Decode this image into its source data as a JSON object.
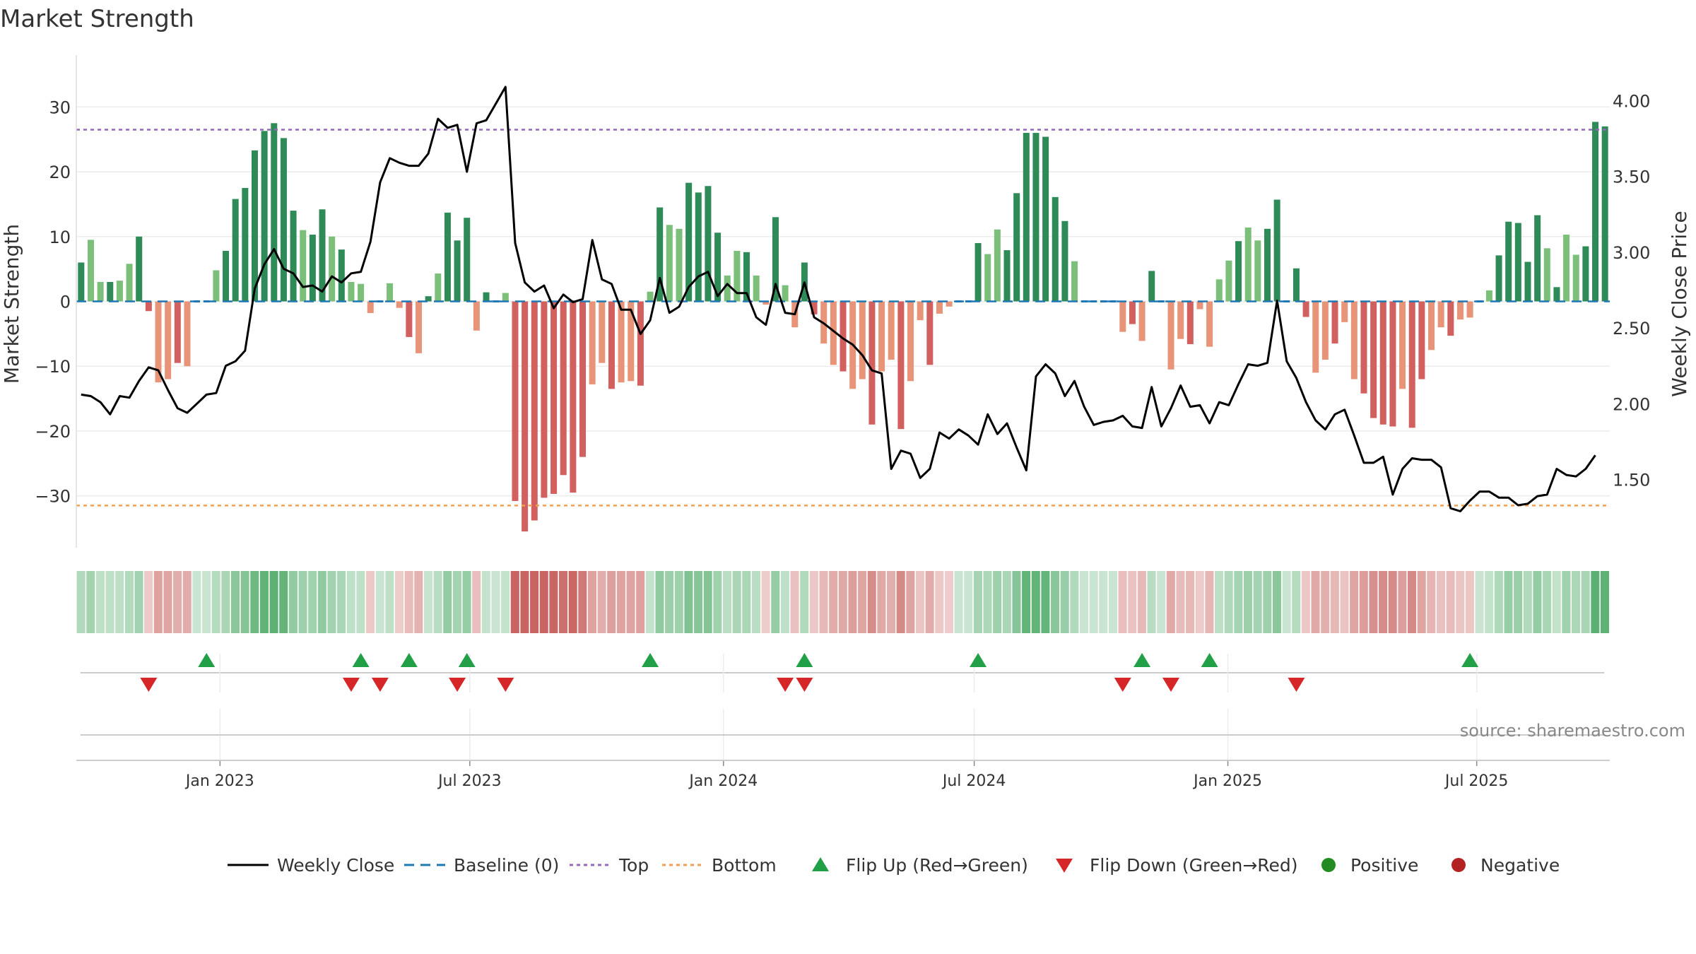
{
  "chart_data": {
    "type": "bar",
    "title": "Market Strength",
    "ylabel_left": "Market Strength",
    "ylabel_right": "Weekly Close Price",
    "ylim_left": [
      -38,
      38
    ],
    "ylim_right": [
      1.05,
      4.3
    ],
    "yticks_left": [
      30,
      20,
      10,
      0,
      -10,
      -20,
      -30
    ],
    "yticks_left_labels": [
      "30",
      "20",
      "10",
      "0",
      "−10",
      "−20",
      "−30"
    ],
    "yticks_right": [
      4.0,
      3.5,
      3.0,
      2.5,
      2.0,
      1.5
    ],
    "yticks_right_labels": [
      "4.00",
      "3.50",
      "3.00",
      "2.50",
      "2.00",
      "1.50"
    ],
    "x_start": "2022-09-26",
    "x_end": "2025-09-22",
    "xticks": [
      {
        "label": "Jan 2023",
        "week": 14.4
      },
      {
        "label": "Jul 2023",
        "week": 40.3
      },
      {
        "label": "Jan 2024",
        "week": 66.6
      },
      {
        "label": "Jul 2024",
        "week": 92.6
      },
      {
        "label": "Jan 2025",
        "week": 118.9
      },
      {
        "label": "Jul 2025",
        "week": 144.7
      }
    ],
    "top_line": 26.5,
    "bottom_line": -31.5,
    "strength": [
      6,
      9.5,
      3,
      3,
      3.2,
      5.8,
      10,
      -1.5,
      -12.5,
      -12,
      -9.5,
      -10,
      0,
      0,
      4.8,
      7.8,
      15.8,
      17.5,
      23.3,
      26.3,
      27.5,
      25.2,
      14,
      11,
      10.3,
      14.2,
      10,
      8,
      3,
      2.7,
      -1.8,
      0,
      2.8,
      -1,
      -5.5,
      -8,
      0.8,
      4.3,
      13.7,
      9.4,
      12.9,
      -4.5,
      1.4,
      0,
      1.3,
      -30.8,
      -35.5,
      -33.8,
      -30.3,
      -29.7,
      -26.8,
      -29.5,
      -24,
      -12.8,
      -9.5,
      -13.5,
      -12.5,
      -12.3,
      -13,
      1.5,
      14.5,
      11.8,
      11.2,
      18.3,
      16.8,
      17.8,
      10.6,
      4,
      7.8,
      7.6,
      4,
      -0.5,
      13,
      2.5,
      -4,
      6,
      -2,
      -6.5,
      -9.8,
      -10.8,
      -13.5,
      -12,
      -19,
      -10.8,
      -9,
      -19.7,
      -12.3,
      -2.9,
      -9.8,
      -1.9,
      -0.8,
      0,
      0,
      9,
      7.3,
      11.1,
      7.9,
      16.7,
      26,
      26,
      25.4,
      16.1,
      12.4,
      6.2,
      0,
      0,
      0,
      0,
      -4.7,
      -3.5,
      -6.1,
      4.7,
      0,
      -10.5,
      -5.8,
      -6.6,
      -1.2,
      -7,
      3.4,
      6.3,
      9.3,
      11.4,
      9.4,
      11.2,
      15.7,
      0,
      5.1,
      -2.4,
      -11,
      -9,
      -6.5,
      -3.2,
      -12,
      -14.2,
      -18,
      -19,
      -19.3,
      -13.5,
      -19.5,
      -12,
      -7.5,
      -4,
      -5.3,
      -2.8,
      -2.5,
      0,
      1.7,
      7.1,
      12.3,
      12.1,
      6.1,
      13.3,
      8.2,
      2.2,
      10.3,
      7.2,
      8.5,
      27.7,
      27
    ],
    "weekly_close": [
      2.06,
      2.05,
      2.01,
      1.93,
      2.05,
      2.04,
      2.15,
      2.24,
      2.22,
      2.09,
      1.97,
      1.94,
      2.0,
      2.06,
      2.07,
      2.25,
      2.28,
      2.35,
      2.76,
      2.92,
      3.02,
      2.89,
      2.86,
      2.77,
      2.78,
      2.74,
      2.84,
      2.8,
      2.86,
      2.87,
      3.07,
      3.46,
      3.62,
      3.59,
      3.57,
      3.57,
      3.65,
      3.88,
      3.82,
      3.84,
      3.53,
      3.85,
      3.87,
      3.98,
      4.09,
      3.06,
      2.8,
      2.74,
      2.78,
      2.63,
      2.72,
      2.67,
      2.69,
      3.08,
      2.82,
      2.79,
      2.62,
      2.62,
      2.46,
      2.55,
      2.83,
      2.6,
      2.64,
      2.77,
      2.84,
      2.87,
      2.71,
      2.79,
      2.73,
      2.73,
      2.57,
      2.52,
      2.79,
      2.6,
      2.59,
      2.8,
      2.57,
      2.53,
      2.48,
      2.43,
      2.39,
      2.32,
      2.22,
      2.2,
      1.57,
      1.69,
      1.67,
      1.51,
      1.57,
      1.81,
      1.77,
      1.83,
      1.79,
      1.73,
      1.93,
      1.8,
      1.87,
      1.71,
      1.56,
      2.18,
      2.26,
      2.2,
      2.05,
      2.15,
      1.98,
      1.86,
      1.88,
      1.89,
      1.92,
      1.85,
      1.84,
      2.11,
      1.85,
      1.97,
      2.12,
      1.98,
      1.99,
      1.87,
      2.01,
      1.99,
      2.13,
      2.26,
      2.25,
      2.27,
      2.68,
      2.28,
      2.17,
      2.01,
      1.89,
      1.83,
      1.93,
      1.96,
      1.79,
      1.61,
      1.61,
      1.65,
      1.4,
      1.57,
      1.64,
      1.63,
      1.63,
      1.58,
      1.31,
      1.29,
      1.36,
      1.42,
      1.42,
      1.38,
      1.38,
      1.33,
      1.34,
      1.39,
      1.4,
      1.57,
      1.53,
      1.52,
      1.57,
      1.66
    ],
    "flip_up_weeks": [
      13,
      29,
      34,
      40,
      59,
      75,
      93,
      110,
      117,
      144
    ],
    "flip_down_weeks": [
      7,
      28,
      31,
      39,
      44,
      73,
      75,
      108,
      113,
      126
    ],
    "colors": {
      "pos_strong": "#2e8b57",
      "pos_weak": "#7bbf7a",
      "neg_strong": "#d1605e",
      "neg_weak": "#e89478",
      "baseline": "#1f77b4",
      "top": "#9467bd",
      "bottom": "#f0a050",
      "close": "#000000",
      "flip_up": "#22a047",
      "flip_down": "#d62728",
      "positive_dot": "#228b22",
      "negative_dot": "#b22222"
    },
    "legend": [
      {
        "label": "Weekly Close",
        "kind": "line"
      },
      {
        "label": "Baseline (0)",
        "kind": "dash"
      },
      {
        "label": "Top",
        "kind": "dot-purple"
      },
      {
        "label": "Bottom",
        "kind": "dot-orange"
      },
      {
        "label": "Flip Up (Red→Green)",
        "kind": "tri-up"
      },
      {
        "label": "Flip Down (Green→Red)",
        "kind": "tri-down"
      },
      {
        "label": "Positive",
        "kind": "circle-pos"
      },
      {
        "label": "Negative",
        "kind": "circle-neg"
      }
    ],
    "source": "source: sharemaestro.com"
  }
}
